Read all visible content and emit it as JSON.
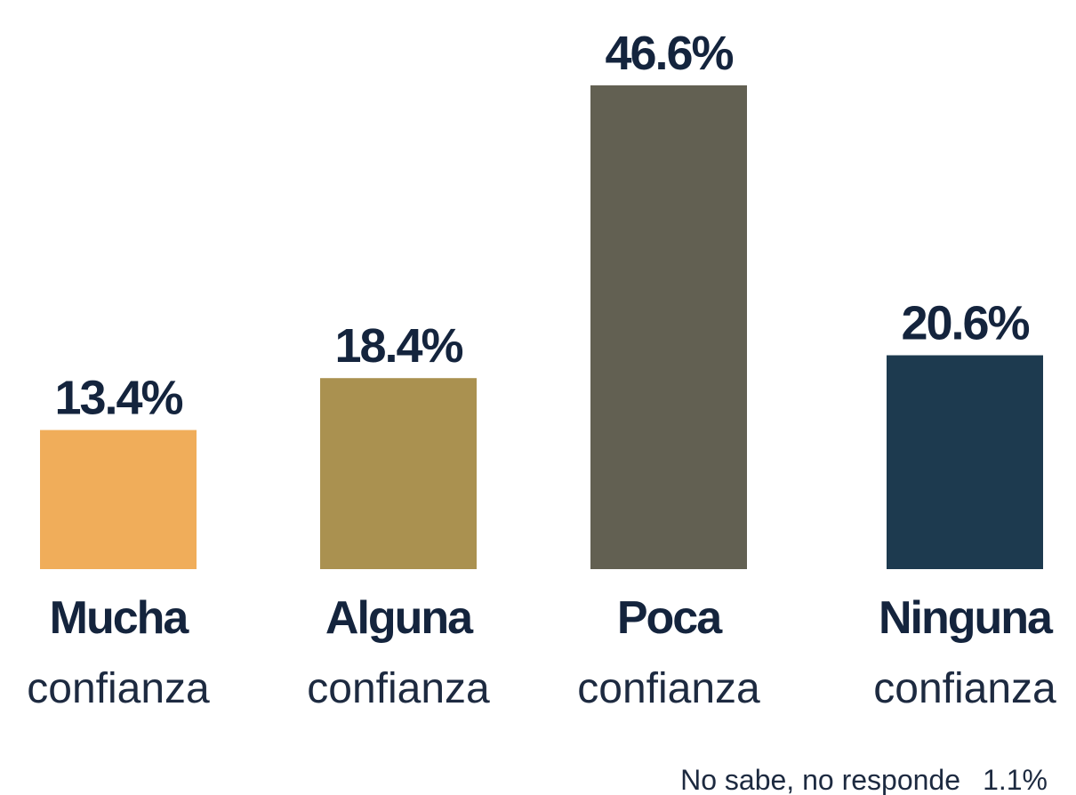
{
  "chart_data": {
    "type": "bar",
    "categories": [
      [
        "Mucha",
        "confianza"
      ],
      [
        "Alguna",
        "confianza"
      ],
      [
        "Poca",
        "confianza"
      ],
      [
        "Ninguna",
        "confianza"
      ]
    ],
    "values": [
      13.4,
      18.4,
      46.6,
      20.6
    ],
    "value_labels": [
      "13.4%",
      "18.4%",
      "46.6%",
      "20.6%"
    ],
    "colors": [
      "#f0ad5a",
      "#aa9150",
      "#626052",
      "#1d3a4f"
    ],
    "ylim": [
      0,
      46.6
    ],
    "other": {
      "name": "No sabe, no responde",
      "value": 1.1,
      "value_label": "1.1%"
    }
  }
}
